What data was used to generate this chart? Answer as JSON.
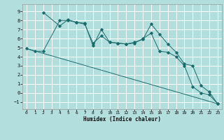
{
  "xlabel": "Humidex (Indice chaleur)",
  "xlim": [
    -0.5,
    23.5
  ],
  "ylim": [
    -1.8,
    9.8
  ],
  "xticks": [
    0,
    1,
    2,
    3,
    4,
    5,
    6,
    7,
    8,
    9,
    10,
    11,
    12,
    13,
    14,
    15,
    16,
    17,
    18,
    19,
    20,
    21,
    22,
    23
  ],
  "yticks": [
    -1,
    0,
    1,
    2,
    3,
    4,
    5,
    6,
    7,
    8,
    9
  ],
  "background_color": "#b2dede",
  "grid_color": "#ffffff",
  "line_color": "#1a6b6b",
  "series1_x": [
    0,
    1,
    2,
    4,
    5,
    6,
    7,
    8,
    9,
    10,
    11,
    12,
    13,
    14,
    15,
    16,
    17,
    18,
    19,
    20,
    21,
    22,
    23
  ],
  "series1_y": [
    4.9,
    4.6,
    4.6,
    8.0,
    8.0,
    7.8,
    7.6,
    5.5,
    6.3,
    5.6,
    5.5,
    5.4,
    5.5,
    6.0,
    6.6,
    4.6,
    4.5,
    4.0,
    3.0,
    0.7,
    0.0,
    -0.2,
    -1.2
  ],
  "series2_x": [
    2,
    4,
    5,
    6,
    7,
    8,
    9,
    10,
    11,
    12,
    13,
    14,
    15,
    16,
    17,
    18,
    19,
    20,
    21,
    22,
    23
  ],
  "series2_y": [
    8.9,
    7.4,
    8.1,
    7.8,
    7.7,
    5.2,
    7.0,
    5.6,
    5.5,
    5.4,
    5.6,
    5.9,
    7.6,
    6.5,
    5.4,
    4.5,
    3.2,
    3.0,
    0.8,
    0.1,
    -1.2
  ],
  "series3_x": [
    0,
    23
  ],
  "series3_y": [
    4.9,
    -1.2
  ]
}
